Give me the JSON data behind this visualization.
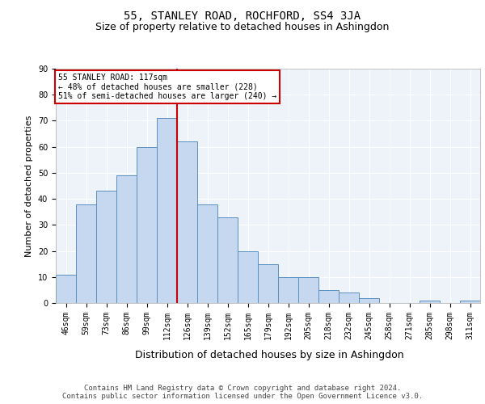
{
  "title1": "55, STANLEY ROAD, ROCHFORD, SS4 3JA",
  "title2": "Size of property relative to detached houses in Ashingdon",
  "xlabel": "Distribution of detached houses by size in Ashingdon",
  "ylabel": "Number of detached properties",
  "categories": [
    "46sqm",
    "59sqm",
    "73sqm",
    "86sqm",
    "99sqm",
    "112sqm",
    "126sqm",
    "139sqm",
    "152sqm",
    "165sqm",
    "179sqm",
    "192sqm",
    "205sqm",
    "218sqm",
    "232sqm",
    "245sqm",
    "258sqm",
    "271sqm",
    "285sqm",
    "298sqm",
    "311sqm"
  ],
  "values": [
    11,
    38,
    43,
    49,
    60,
    71,
    62,
    38,
    33,
    20,
    15,
    10,
    10,
    5,
    4,
    2,
    0,
    0,
    1,
    0,
    1
  ],
  "bar_color": "#c5d8f0",
  "bar_edge_color": "#5a8fc2",
  "vline_x": 5.5,
  "vline_color": "#cc0000",
  "ylim": [
    0,
    90
  ],
  "yticks": [
    0,
    10,
    20,
    30,
    40,
    50,
    60,
    70,
    80,
    90
  ],
  "annotation_text": "55 STANLEY ROAD: 117sqm\n← 48% of detached houses are smaller (228)\n51% of semi-detached houses are larger (240) →",
  "annotation_box_color": "#ffffff",
  "annotation_box_edge": "#cc0000",
  "footer_text": "Contains HM Land Registry data © Crown copyright and database right 2024.\nContains public sector information licensed under the Open Government Licence v3.0.",
  "background_color": "#eef2f9",
  "grid_color": "#ffffff",
  "fig_background": "#ffffff",
  "title1_fontsize": 10,
  "title2_fontsize": 9,
  "xlabel_fontsize": 9,
  "ylabel_fontsize": 8,
  "footer_fontsize": 6.5,
  "tick_fontsize": 7
}
